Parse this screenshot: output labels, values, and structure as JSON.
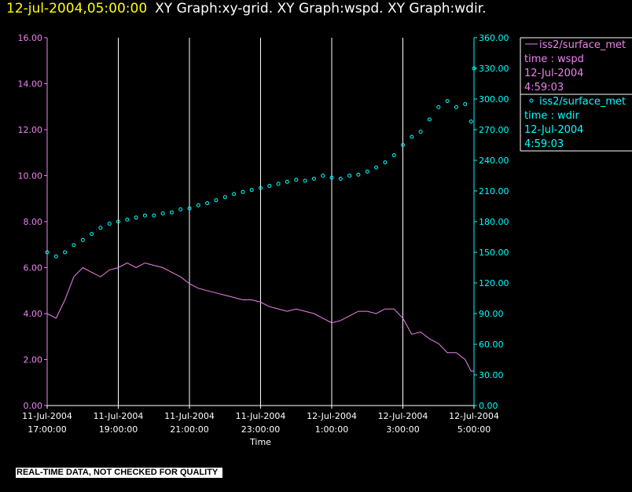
{
  "header": {
    "timestamp": "12-jul-2004,05:00:00",
    "graphs": "XY Graph:xy-grid.  XY Graph:wspd.  XY Graph:wdir."
  },
  "quality_notice": "REAL-TIME DATA, NOT CHECKED FOR QUALITY",
  "colors": {
    "wspd": "#ee82ee",
    "wdir": "#00ffff",
    "grid": "#ffffff",
    "timestamp": "#ffff00"
  },
  "legend": [
    {
      "line1": "iss2/surface_met",
      "line2": "time : wspd",
      "line3": "12-Jul-2004",
      "line4": "4:59:03",
      "marker": "line"
    },
    {
      "line1": "iss2/surface_met",
      "line2": "time : wdir",
      "line3": "12-Jul-2004",
      "line4": "4:59:03",
      "marker": "circle"
    }
  ],
  "chart_data": {
    "type": "line",
    "xlabel": "Time",
    "x_ticks": [
      {
        "date": "11-Jul-2004",
        "time": "17:00:00"
      },
      {
        "date": "11-Jul-2004",
        "time": "19:00:00"
      },
      {
        "date": "11-Jul-2004",
        "time": "21:00:00"
      },
      {
        "date": "11-Jul-2004",
        "time": "23:00:00"
      },
      {
        "date": "12-Jul-2004",
        "time": "1:00:00"
      },
      {
        "date": "12-Jul-2004",
        "time": "3:00:00"
      },
      {
        "date": "12-Jul-2004",
        "time": "5:00:00"
      }
    ],
    "xlim": [
      "2004-07-11 17:00",
      "2004-07-12 05:00"
    ],
    "y_left": {
      "lim": [
        0,
        16
      ],
      "ticks": [
        "0.00",
        "2.00",
        "4.00",
        "6.00",
        "8.00",
        "10.00",
        "12.00",
        "14.00",
        "16.00"
      ]
    },
    "y_right": {
      "lim": [
        0,
        360
      ],
      "ticks": [
        "0.00",
        "30.00",
        "60.00",
        "90.00",
        "120.00",
        "150.00",
        "180.00",
        "210.00",
        "240.00",
        "270.00",
        "300.00",
        "330.00",
        "360.00"
      ]
    },
    "grid": "vertical",
    "series": [
      {
        "name": "iss2/surface_met time : wspd",
        "axis": "left",
        "style": "line",
        "x": [
          "17:00",
          "17:15",
          "17:30",
          "17:45",
          "18:00",
          "18:15",
          "18:30",
          "18:45",
          "19:00",
          "19:15",
          "19:30",
          "19:45",
          "20:00",
          "20:15",
          "20:30",
          "20:45",
          "21:00",
          "21:15",
          "21:30",
          "21:45",
          "22:00",
          "22:15",
          "22:30",
          "22:45",
          "23:00",
          "23:15",
          "23:30",
          "23:45",
          "00:00",
          "00:15",
          "00:30",
          "00:45",
          "01:00",
          "01:15",
          "01:30",
          "01:45",
          "02:00",
          "02:15",
          "02:30",
          "02:45",
          "03:00",
          "03:15",
          "03:30",
          "03:45",
          "04:00",
          "04:15",
          "04:30",
          "04:45",
          "04:55",
          "05:00"
        ],
        "y": [
          4.0,
          3.8,
          4.6,
          5.6,
          6.0,
          5.8,
          5.6,
          5.9,
          6.0,
          6.2,
          6.0,
          6.2,
          6.1,
          6.0,
          5.8,
          5.6,
          5.3,
          5.1,
          5.0,
          4.9,
          4.8,
          4.7,
          4.6,
          4.6,
          4.5,
          4.3,
          4.2,
          4.1,
          4.2,
          4.1,
          4.0,
          3.8,
          3.6,
          3.7,
          3.9,
          4.1,
          4.1,
          4.0,
          4.2,
          4.2,
          3.8,
          3.1,
          3.2,
          2.9,
          2.7,
          2.3,
          2.3,
          2.0,
          1.5,
          1.5
        ]
      },
      {
        "name": "iss2/surface_met time : wdir",
        "axis": "right",
        "style": "markers",
        "x": [
          "17:00",
          "17:15",
          "17:30",
          "17:45",
          "18:00",
          "18:15",
          "18:30",
          "18:45",
          "19:00",
          "19:15",
          "19:30",
          "19:45",
          "20:00",
          "20:15",
          "20:30",
          "20:45",
          "21:00",
          "21:15",
          "21:30",
          "21:45",
          "22:00",
          "22:15",
          "22:30",
          "22:45",
          "23:00",
          "23:15",
          "23:30",
          "23:45",
          "00:00",
          "00:15",
          "00:30",
          "00:45",
          "01:00",
          "01:15",
          "01:30",
          "01:45",
          "02:00",
          "02:15",
          "02:30",
          "02:45",
          "03:00",
          "03:15",
          "03:30",
          "03:45",
          "04:00",
          "04:15",
          "04:30",
          "04:45",
          "04:55",
          "05:00"
        ],
        "y": [
          150,
          146,
          150,
          157,
          162,
          168,
          174,
          178,
          180,
          182,
          184,
          186,
          186,
          188,
          189,
          192,
          193,
          196,
          198,
          201,
          204,
          207,
          209,
          211,
          213,
          215,
          217,
          219,
          221,
          220,
          222,
          225,
          223,
          222,
          225,
          226,
          229,
          233,
          238,
          245,
          255,
          263,
          268,
          280,
          292,
          298,
          292,
          295,
          278,
          330
        ]
      }
    ]
  }
}
